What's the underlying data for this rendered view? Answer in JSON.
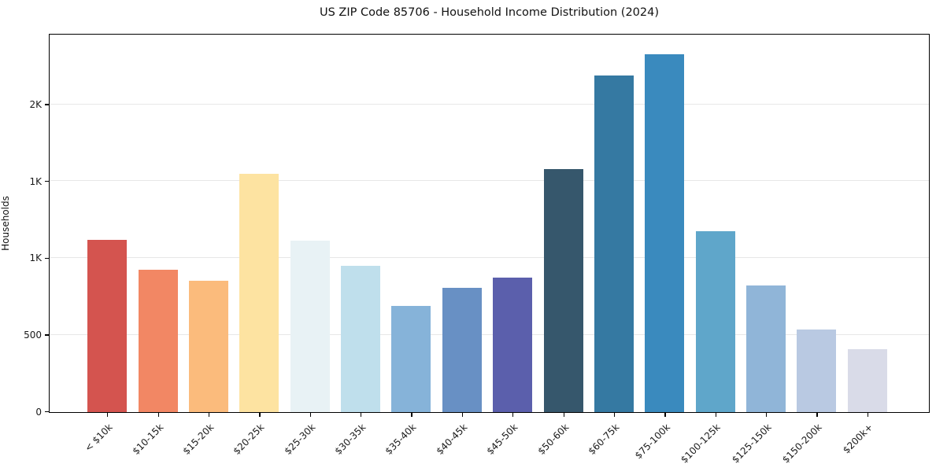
{
  "chart_data": {
    "type": "bar",
    "title": "US ZIP Code 85706 - Household Income Distribution (2024)",
    "xlabel": "",
    "ylabel": "Households",
    "categories": [
      "< $10k",
      "$10-15k",
      "$15-20k",
      "$20-25k",
      "$25-30k",
      "$30-35k",
      "$35-40k",
      "$40-45k",
      "$45-50k",
      "$50-60k",
      "$60-75k",
      "$75-100k",
      "$100-125k",
      "$125-150k",
      "$150-200k",
      "$200k+"
    ],
    "values": [
      1120,
      925,
      855,
      1550,
      1115,
      950,
      690,
      805,
      875,
      1580,
      2185,
      2325,
      1175,
      825,
      535,
      410
    ],
    "bar_colors": [
      "#d4544f",
      "#f28764",
      "#fbbb7c",
      "#fde3a1",
      "#e8f2f5",
      "#bfdfec",
      "#86b3d9",
      "#6890c4",
      "#5b5fac",
      "#36576c",
      "#3579a2",
      "#3a8abe",
      "#5fa6ca",
      "#90b5d8",
      "#b9c9e2",
      "#d9dbe8"
    ],
    "ylim": [
      0,
      2453
    ],
    "yticks": [
      {
        "value": 0,
        "label": "0"
      },
      {
        "value": 500,
        "label": "500"
      },
      {
        "value": 1000,
        "label": "1K"
      },
      {
        "value": 1500,
        "label": "1K"
      },
      {
        "value": 2000,
        "label": "2K"
      }
    ],
    "grid": "horizontal",
    "gridline_color": "#e7e7e7",
    "spine_color": "#000000",
    "legend": "none"
  }
}
